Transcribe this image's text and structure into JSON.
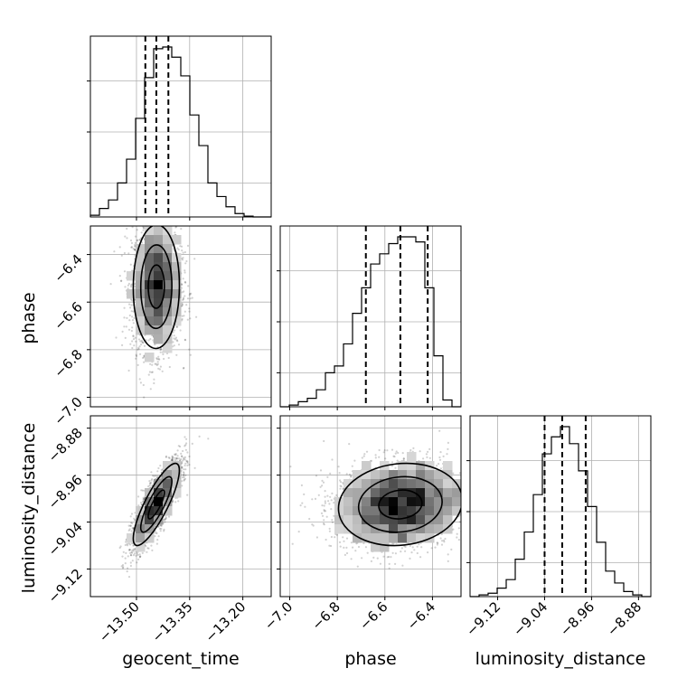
{
  "chart_data": {
    "type": "corner",
    "parameters": [
      "geocent_time",
      "phase",
      "luminosity_distance"
    ],
    "ranges": {
      "geocent_time": [
        -13.63,
        -13.12
      ],
      "phase": [
        -7.04,
        -6.28
      ],
      "luminosity_distance": [
        -9.167,
        -8.859
      ]
    },
    "ticks": {
      "geocent_time": [
        -13.5,
        -13.35,
        -13.2
      ],
      "phase_y": [
        -6.4,
        -6.6,
        -6.8,
        -7.0
      ],
      "phase_x": [
        -7.0,
        -6.8,
        -6.6,
        -6.4
      ],
      "luminosity_distance": [
        -8.88,
        -8.96,
        -9.04,
        -9.12
      ],
      "luminosity_distance_x": [
        -9.12,
        -9.04,
        -8.96,
        -8.88
      ]
    },
    "tick_labels": {
      "geocent_time": [
        "−13.50",
        "−13.35",
        "−13.20"
      ],
      "phase_y": [
        "−6.4",
        "−6.6",
        "−6.8",
        "−7.0"
      ],
      "phase_x": [
        "−7.0",
        "−6.8",
        "−6.6",
        "−6.4"
      ],
      "luminosity_distance_y": [
        "−8.88",
        "−8.96",
        "−9.04",
        "−9.12"
      ],
      "luminosity_distance_x": [
        "−9.12",
        "−9.04",
        "−8.96",
        "−8.88"
      ]
    },
    "axis_labels": {
      "geocent_time": "geocent_time",
      "phase": "phase",
      "luminosity_distance": "luminosity_distance"
    },
    "quantiles": {
      "geocent_time": [
        -13.475,
        -13.444,
        -13.41
      ],
      "phase": [
        -6.68,
        -6.535,
        -6.42
      ],
      "luminosity_distance": [
        -9.04,
        -9.01,
        -8.97
      ]
    },
    "histograms": {
      "geocent_time": [
        0.01,
        0.05,
        0.1,
        0.2,
        0.34,
        0.58,
        0.82,
        0.99,
        1.0,
        0.94,
        0.83,
        0.6,
        0.42,
        0.2,
        0.12,
        0.06,
        0.02,
        0.005,
        0.0,
        0.0
      ],
      "phase": [
        0.0,
        0.01,
        0.03,
        0.05,
        0.1,
        0.2,
        0.24,
        0.37,
        0.55,
        0.7,
        0.84,
        0.9,
        0.96,
        1.0,
        1.0,
        0.97,
        0.7,
        0.3,
        0.04,
        0.0
      ],
      "luminosity_distance": [
        0.0,
        0.01,
        0.02,
        0.05,
        0.1,
        0.22,
        0.38,
        0.6,
        0.84,
        0.94,
        1.0,
        0.9,
        0.74,
        0.53,
        0.32,
        0.15,
        0.08,
        0.03,
        0.01,
        0.0
      ]
    },
    "scatter_samples": 2400,
    "correlations": {
      "phase_vs_geocent_time": 0.02,
      "luminosity_distance_vs_geocent_time": 0.83,
      "luminosity_distance_vs_phase": 0.1
    },
    "grid": true
  }
}
